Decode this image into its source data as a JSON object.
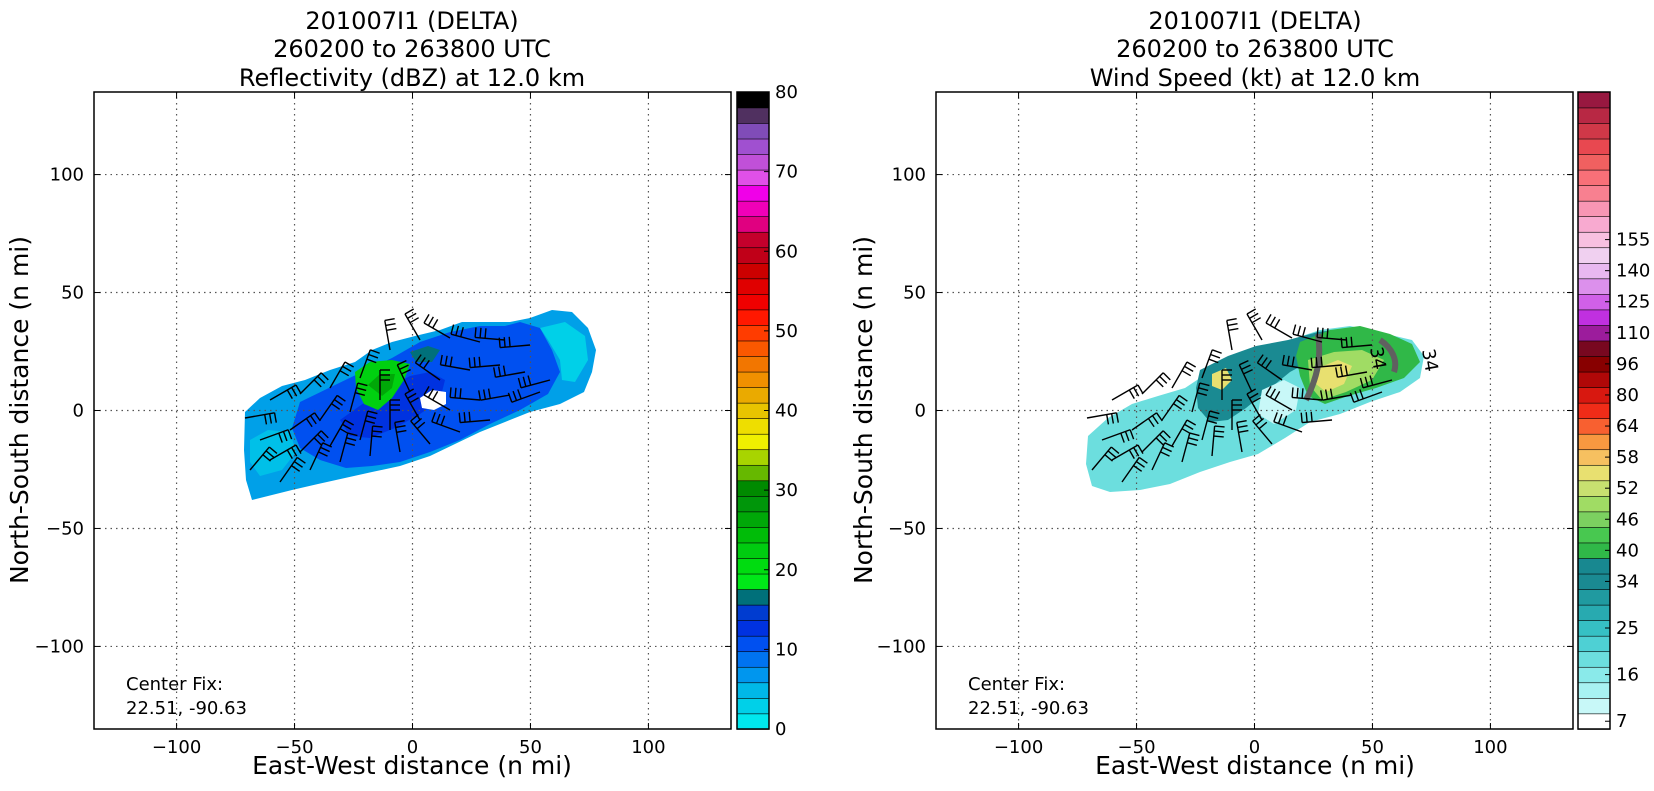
{
  "chart_data": [
    {
      "type": "heatmap",
      "title": [
        "201007I1 (DELTA)",
        "260200 to 263800 UTC",
        "Reflectivity (dBZ) at 12.0 km"
      ],
      "xlabel": "East-West distance (n mi)",
      "ylabel": "North-South distance (n mi)",
      "xlim": [
        -135,
        135
      ],
      "ylim": [
        -135,
        135
      ],
      "xticks": [
        "−100",
        "−50",
        "0",
        "50",
        "100"
      ],
      "xtick_values": [
        -100,
        -50,
        0,
        50,
        100
      ],
      "yticks": [
        "−100",
        "−50",
        "0",
        "50",
        "100"
      ],
      "ytick_values": [
        -100,
        -50,
        0,
        50,
        100
      ],
      "grid": true,
      "annotation": [
        "Center Fix:",
        "22.51, -90.63"
      ],
      "colorbar": {
        "min": 0,
        "max": 80,
        "step": 2.5,
        "tick_values": [
          0,
          10,
          20,
          30,
          40,
          50,
          60,
          70,
          80
        ],
        "tick_labels": [
          "0",
          "10",
          "20",
          "30",
          "40",
          "50",
          "60",
          "70",
          "80"
        ],
        "colors": [
          "#00e8ee",
          "#00d0e8",
          "#00b8e8",
          "#0096ee",
          "#0073f0",
          "#0050f0",
          "#0032e0",
          "#003cd0",
          "#00707a",
          "#00e818",
          "#00dc10",
          "#00cc10",
          "#00bc08",
          "#00a808",
          "#00960a",
          "#008a00",
          "#66b800",
          "#a8d400",
          "#f0f000",
          "#eede00",
          "#e8c400",
          "#eaaa00",
          "#f09000",
          "#f27600",
          "#fa5800",
          "#ff3c00",
          "#ff1800",
          "#f00000",
          "#e00000",
          "#cc0000",
          "#c00018",
          "#c4002c",
          "#e00080",
          "#f000b8",
          "#f000e8",
          "#e050e8",
          "#c050d8",
          "#a050d0",
          "#804cb8",
          "#503060",
          "#000000"
        ]
      },
      "legend": "none"
    },
    {
      "type": "heatmap",
      "title": [
        "201007I1 (DELTA)",
        "260200 to 263800 UTC",
        "Wind Speed (kt) at 12.0 km"
      ],
      "xlabel": "East-West distance (n mi)",
      "ylabel": "North-South distance (n mi)",
      "xlim": [
        -135,
        135
      ],
      "ylim": [
        -135,
        135
      ],
      "xticks": [
        "−100",
        "−50",
        "0",
        "50",
        "100"
      ],
      "xtick_values": [
        -100,
        -50,
        0,
        50,
        100
      ],
      "yticks": [
        "−100",
        "−50",
        "0",
        "50",
        "100"
      ],
      "ytick_values": [
        -100,
        -50,
        0,
        50,
        100
      ],
      "grid": true,
      "contour_labels": [
        "34",
        "34"
      ],
      "annotation": [
        "Center Fix:",
        "22.51, -90.63"
      ],
      "colorbar": {
        "tick_labels": [
          "7",
          "16",
          "25",
          "34",
          "40",
          "46",
          "52",
          "58",
          "64",
          "80",
          "96",
          "110",
          "125",
          "140",
          "155"
        ],
        "tick_bins": [
          0.5,
          3.5,
          6.5,
          9.5,
          11.5,
          13.5,
          15.5,
          17.5,
          19.5,
          21.5,
          23.5,
          25.5,
          27.5,
          29.5,
          31.5
        ],
        "colors": [
          "#ffffff",
          "#c8f8f8",
          "#a8f2f2",
          "#8aeaea",
          "#6cdede",
          "#4ed0d4",
          "#36c0c4",
          "#28aab0",
          "#209aa0",
          "#1a8a92",
          "#188890",
          "#30b848",
          "#48c850",
          "#7cd060",
          "#a0dc64",
          "#c8e070",
          "#e8e070",
          "#f6c060",
          "#f89840",
          "#f86030",
          "#f02c18",
          "#d81810",
          "#b00808",
          "#880000",
          "#780820",
          "#9c1c9c",
          "#c030e0",
          "#d060e8",
          "#dc90ec",
          "#e8b8f0",
          "#f0d0f0",
          "#f8c0e0",
          "#f8aad0",
          "#f896b4",
          "#f88090",
          "#f87078",
          "#f06060",
          "#e84850",
          "#d03848",
          "#b82844",
          "#981840"
        ]
      },
      "legend": "none"
    }
  ]
}
